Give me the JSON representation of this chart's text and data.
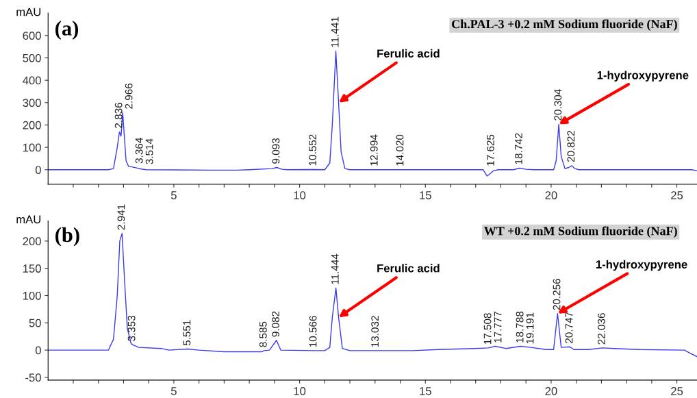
{
  "chart_data": [
    {
      "type": "line",
      "title": "Ch.PAL-3 +0.2 mM Sodium fluoride (NaF)",
      "ylabel": "mAU",
      "grid": false,
      "legend": false,
      "marker": "none",
      "line_style": "solid",
      "xlim": [
        0,
        25.8
      ],
      "ylim": [
        -65,
        700
      ],
      "xticks": [
        {
          "value": 1,
          "label": null
        },
        {
          "value": 2,
          "label": null
        },
        {
          "value": 3,
          "label": null
        },
        {
          "value": 4,
          "label": null
        },
        5,
        {
          "value": 6,
          "label": null
        },
        {
          "value": 7,
          "label": null
        },
        {
          "value": 8,
          "label": null
        },
        {
          "value": 9,
          "label": null
        },
        10,
        {
          "value": 11,
          "label": null
        },
        {
          "value": 12,
          "label": null
        },
        {
          "value": 13,
          "label": null
        },
        {
          "value": 14,
          "label": null
        },
        15,
        {
          "value": 16,
          "label": null
        },
        {
          "value": 17,
          "label": null
        },
        {
          "value": 18,
          "label": null
        },
        {
          "value": 19,
          "label": null
        },
        20,
        {
          "value": 21,
          "label": null
        },
        {
          "value": 22,
          "label": null
        },
        {
          "value": 23,
          "label": null
        },
        {
          "value": 24,
          "label": null
        },
        25
      ],
      "yticks": [
        0,
        100,
        200,
        300,
        400,
        500,
        600
      ],
      "series": [
        {
          "color": "#3a3af0",
          "x": [
            0,
            2.4,
            2.6,
            2.75,
            2.836,
            2.9,
            2.966,
            3.1,
            3.2,
            3.364,
            3.514,
            3.7,
            3.9,
            6.5,
            7.5,
            8,
            8.9,
            9.093,
            9.3,
            9.5,
            10.552,
            11.0,
            11.2,
            11.3,
            11.441,
            11.55,
            11.65,
            11.8,
            12,
            17.3,
            17.45,
            17.55,
            17.7,
            17.9,
            18.5,
            18.742,
            19,
            19.3,
            20.1,
            20.2,
            20.304,
            20.4,
            20.55,
            20.7,
            20.822,
            20.95,
            21.1,
            25.6,
            25.8
          ],
          "values": [
            0,
            0,
            5,
            100,
            169,
            150,
            255,
            40,
            15,
            12,
            8,
            3,
            0,
            -2,
            -2,
            0,
            5,
            10,
            2,
            0,
            1,
            0,
            30,
            200,
            530,
            300,
            80,
            5,
            0,
            0,
            -28,
            -20,
            -5,
            0,
            0,
            7,
            2,
            0,
            0,
            40,
            203,
            60,
            5,
            10,
            18,
            5,
            0,
            0,
            -5
          ]
        }
      ],
      "annotations": [
        "(a)",
        {
          "text": "2.836",
          "x": 2.836,
          "y": 169
        },
        {
          "text": "2.966",
          "x": 2.966,
          "y": 255
        },
        {
          "text": "3.364",
          "x": 3.364,
          "y": 12
        },
        {
          "text": "3.514",
          "x": 3.514,
          "y": 8
        },
        {
          "text": "9.093",
          "x": 9.093,
          "y": 10
        },
        {
          "text": "10.552",
          "x": 10.552,
          "y": 1
        },
        {
          "text": "11.441",
          "x": 11.441,
          "y": 530
        },
        {
          "text": "12.994",
          "x": 12.994,
          "y": 0
        },
        {
          "text": "14.020",
          "x": 14.02,
          "y": 0
        },
        {
          "text": "17.625",
          "x": 17.625,
          "y": 0
        },
        {
          "text": "18.742",
          "x": 18.742,
          "y": 7
        },
        {
          "text": "20.304",
          "x": 20.304,
          "y": 203
        },
        {
          "text": "20.822",
          "x": 20.822,
          "y": 18
        },
        {
          "text": "Ferulic acid",
          "x": 11.55,
          "y": 300
        },
        {
          "text": "1-hydroxypyrene",
          "x": 20.304,
          "y": 203
        }
      ]
    },
    {
      "type": "line",
      "title": "WT +0.2 mM Sodium fluoride (NaF)",
      "ylabel": "mAU",
      "grid": false,
      "legend": false,
      "marker": "none",
      "line_style": "solid",
      "xlim": [
        0,
        25.8
      ],
      "ylim": [
        -55,
        237
      ],
      "xticks": [
        {
          "value": 1,
          "label": null
        },
        {
          "value": 2,
          "label": null
        },
        {
          "value": 3,
          "label": null
        },
        {
          "value": 4,
          "label": null
        },
        5,
        {
          "value": 6,
          "label": null
        },
        {
          "value": 7,
          "label": null
        },
        {
          "value": 8,
          "label": null
        },
        {
          "value": 9,
          "label": null
        },
        10,
        {
          "value": 11,
          "label": null
        },
        {
          "value": 12,
          "label": null
        },
        {
          "value": 13,
          "label": null
        },
        {
          "value": 14,
          "label": null
        },
        15,
        {
          "value": 16,
          "label": null
        },
        {
          "value": 17,
          "label": null
        },
        {
          "value": 18,
          "label": null
        },
        {
          "value": 19,
          "label": null
        },
        20,
        {
          "value": 21,
          "label": null
        },
        {
          "value": 22,
          "label": null
        },
        {
          "value": 23,
          "label": null
        },
        {
          "value": 24,
          "label": null
        },
        25
      ],
      "yticks": [
        -50,
        0,
        50,
        100,
        150,
        200
      ],
      "series": [
        {
          "color": "#3a3af0",
          "x": [
            0,
            2.4,
            2.6,
            2.75,
            2.85,
            2.941,
            3.05,
            3.15,
            3.3,
            3.353,
            3.6,
            4.5,
            4.8,
            5.551,
            6,
            7,
            8.5,
            8.585,
            8.8,
            9.082,
            9.25,
            10.566,
            11.0,
            11.2,
            11.3,
            11.444,
            11.55,
            11.7,
            12,
            13.032,
            14.5,
            15.5,
            17,
            17.508,
            17.777,
            18.2,
            18.788,
            19.191,
            19.8,
            20.1,
            20.256,
            20.4,
            20.747,
            20.9,
            21.5,
            22.036,
            22.5,
            23.5,
            25.3,
            25.5,
            25.8
          ],
          "values": [
            0,
            0,
            20,
            100,
            200,
            214,
            120,
            40,
            12,
            10,
            5,
            3,
            0,
            2,
            0,
            -3,
            -3,
            -1,
            0,
            18,
            0,
            -1,
            -1,
            5,
            60,
            114,
            60,
            3,
            -1,
            -1,
            -1,
            1,
            3,
            4,
            7,
            3,
            7,
            5,
            1,
            1,
            67,
            5,
            6,
            1,
            1,
            4,
            3,
            1,
            0,
            -5,
            -12
          ]
        }
      ],
      "annotations": [
        "(b)",
        {
          "text": "2.941",
          "x": 2.941,
          "y": 214
        },
        {
          "text": "3.353",
          "x": 3.353,
          "y": 10
        },
        {
          "text": "5.551",
          "x": 5.551,
          "y": 2
        },
        {
          "text": "8.585",
          "x": 8.585,
          "y": -1
        },
        {
          "text": "9.082",
          "x": 9.082,
          "y": 18
        },
        {
          "text": "10.566",
          "x": 10.566,
          "y": -1
        },
        {
          "text": "11.444",
          "x": 11.444,
          "y": 114
        },
        {
          "text": "13.032",
          "x": 13.032,
          "y": -1
        },
        {
          "text": "17.508",
          "x": 17.508,
          "y": 4
        },
        {
          "text": "17.777",
          "x": 17.777,
          "y": 7
        },
        {
          "text": "18.788",
          "x": 18.788,
          "y": 7
        },
        {
          "text": "19.191",
          "x": 19.191,
          "y": 5
        },
        {
          "text": "20.256",
          "x": 20.256,
          "y": 67
        },
        {
          "text": "20.747",
          "x": 20.747,
          "y": 6
        },
        {
          "text": "22.036",
          "x": 22.036,
          "y": 4
        },
        {
          "text": "Ferulic acid",
          "x": 11.55,
          "y": 60
        },
        {
          "text": "1-hydroxypyrene",
          "x": 20.256,
          "y": 67
        }
      ]
    }
  ]
}
